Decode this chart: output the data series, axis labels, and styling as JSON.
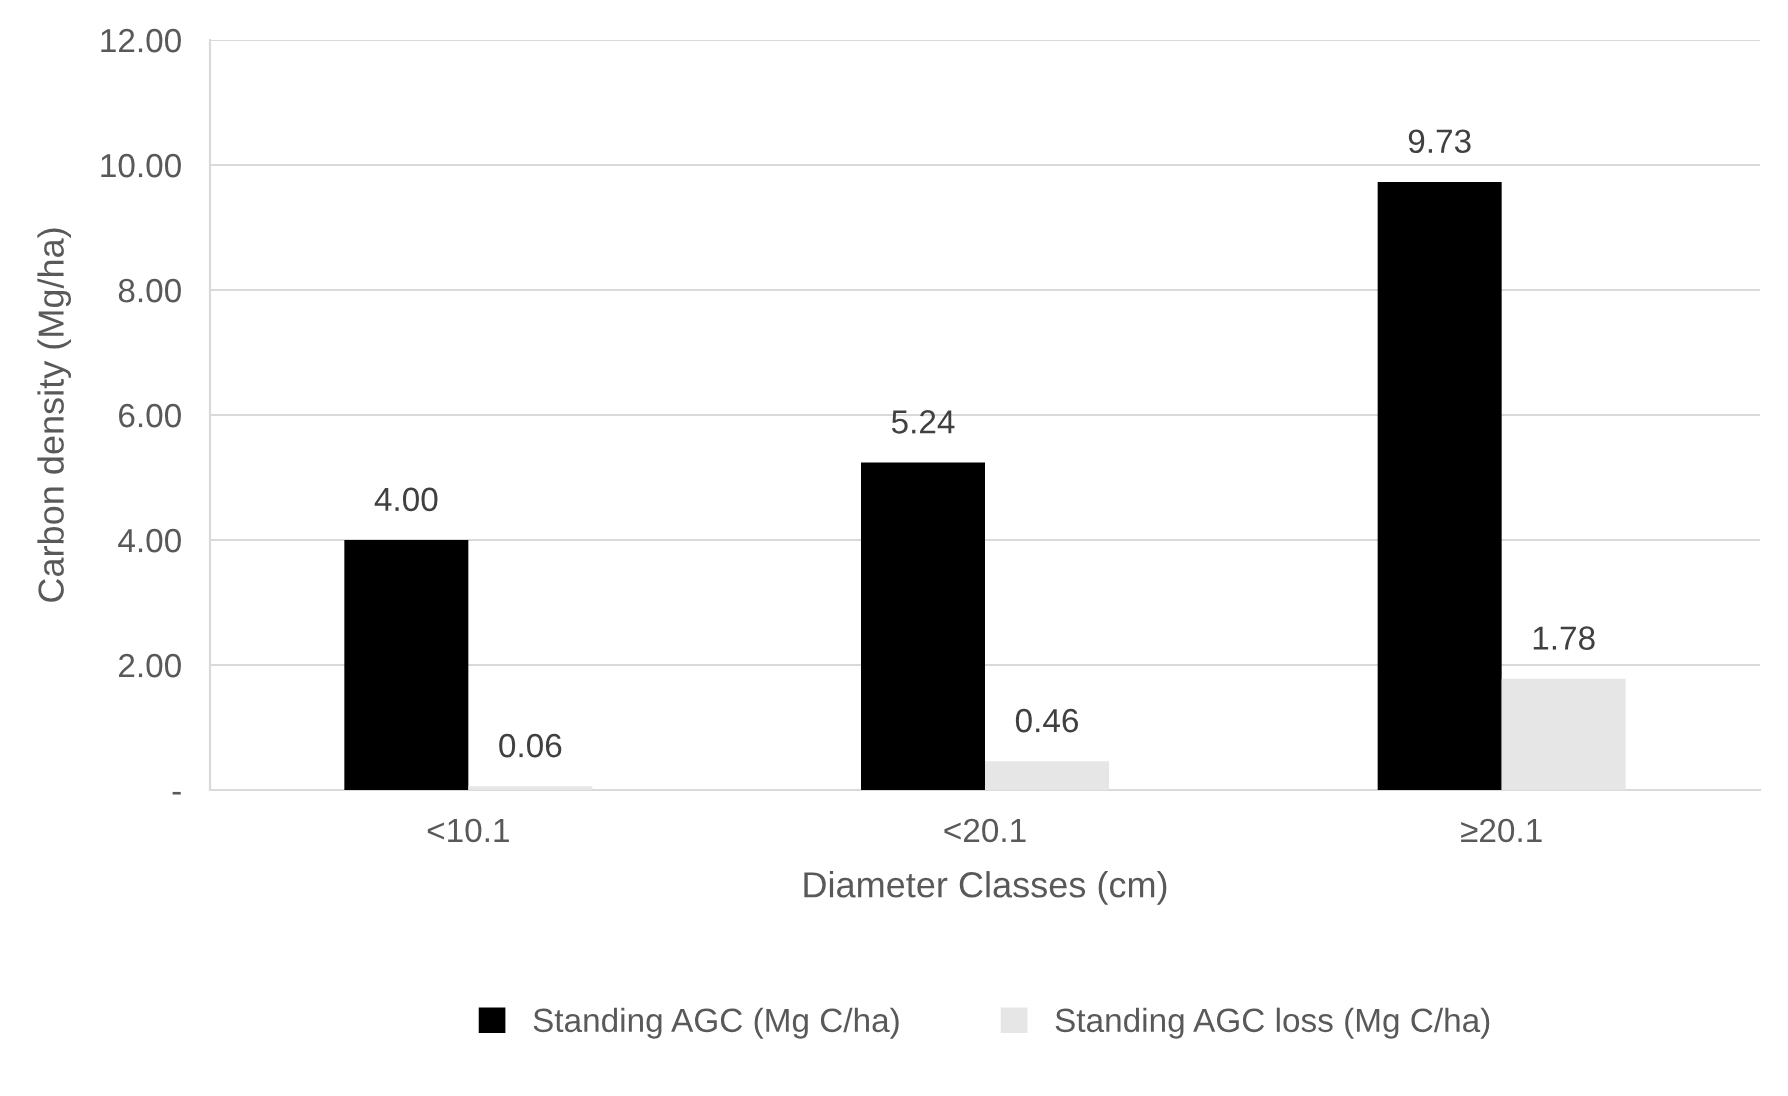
{
  "chart_data": {
    "type": "bar",
    "xlabel": "Diameter Classes (cm)",
    "ylabel": "Carbon density (Mg/ha)",
    "categories": [
      "<10.1",
      "<20.1",
      "≥20.1"
    ],
    "series": [
      {
        "name": "Standing AGC (Mg C/ha)",
        "color": "#000000",
        "values": [
          4.0,
          5.24,
          9.73
        ],
        "value_labels": [
          "4.00",
          "5.24",
          "9.73"
        ]
      },
      {
        "name": "Standing AGC loss (Mg C/ha)",
        "color": "#e7e6e6",
        "values": [
          0.06,
          0.46,
          1.78
        ],
        "value_labels": [
          "0.06",
          "0.46",
          "1.78"
        ]
      }
    ],
    "ylim": [
      0,
      12
    ],
    "yticks": [
      {
        "value": 0,
        "label": "-"
      },
      {
        "value": 2,
        "label": "2.00"
      },
      {
        "value": 4,
        "label": "4.00"
      },
      {
        "value": 6,
        "label": "6.00"
      },
      {
        "value": 8,
        "label": "8.00"
      },
      {
        "value": 10,
        "label": "10.00"
      },
      {
        "value": 12,
        "label": "12.00"
      }
    ],
    "grid": "y",
    "legend": "bottom"
  }
}
